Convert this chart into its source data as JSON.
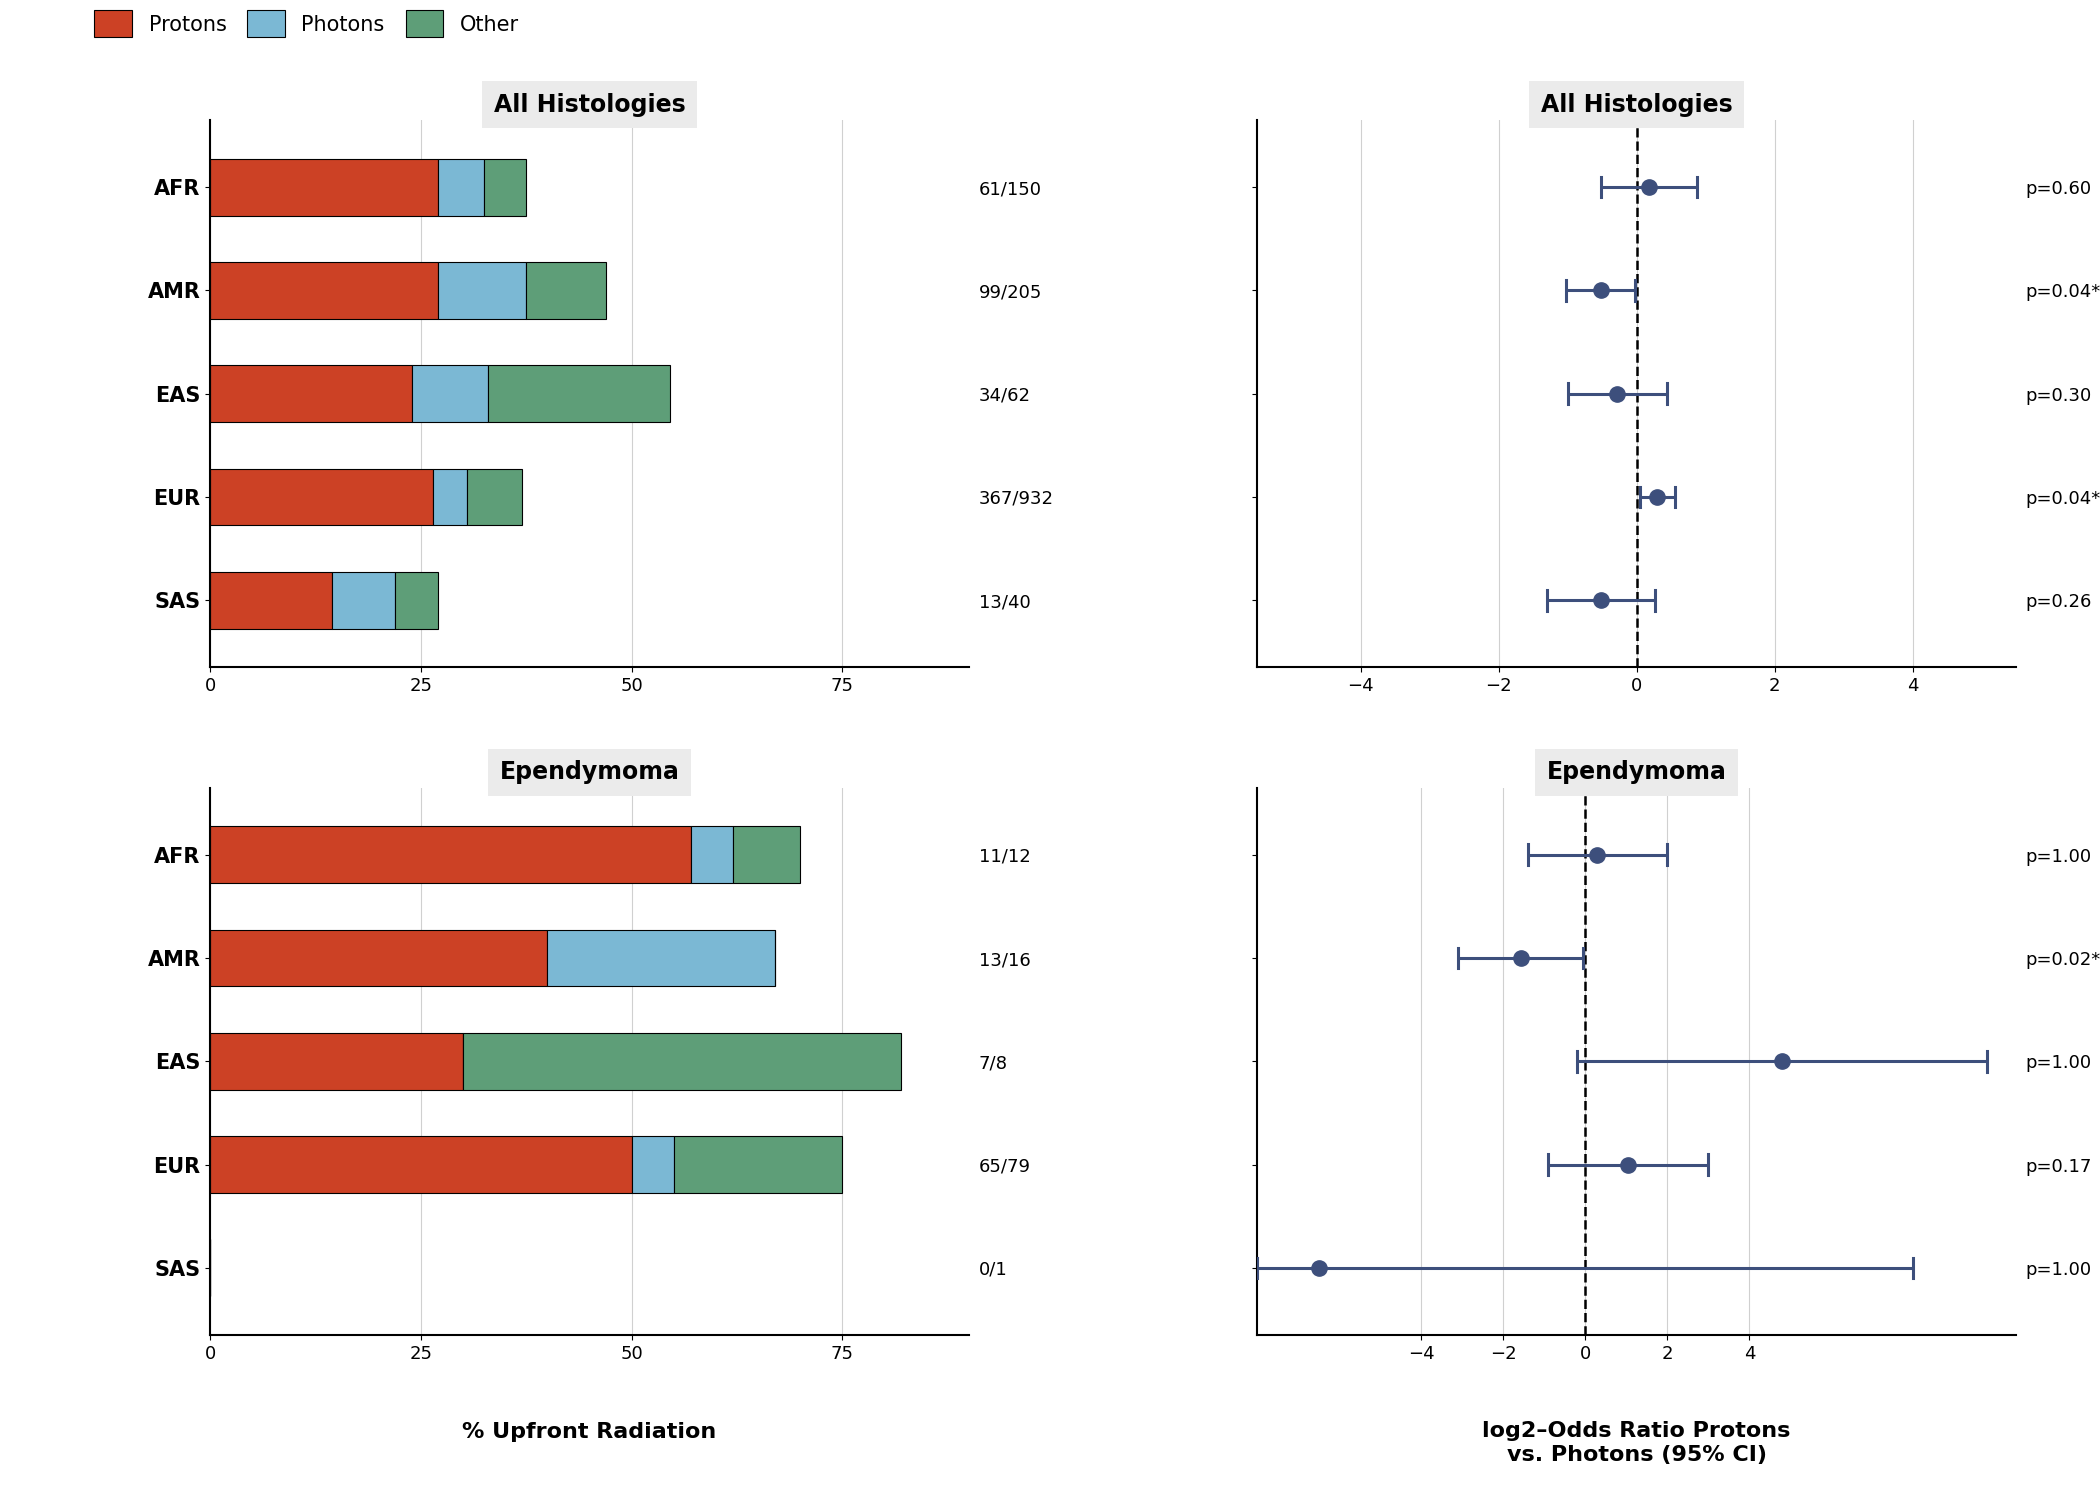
{
  "categories": [
    "AFR",
    "AMR",
    "EAS",
    "EUR",
    "SAS"
  ],
  "bar_colors": {
    "Protons": "#CC4125",
    "Photons": "#7BB8D4",
    "Other": "#5E9E78"
  },
  "all_hist_bars": {
    "Protons": [
      27.0,
      27.0,
      24.0,
      26.5,
      14.5
    ],
    "Photons": [
      5.5,
      10.5,
      9.0,
      4.0,
      7.5
    ],
    "Other": [
      5.0,
      9.5,
      21.5,
      6.5,
      5.0
    ]
  },
  "all_hist_labels": [
    "61/150",
    "99/205",
    "34/62",
    "367/932",
    "13/40"
  ],
  "epen_bars": {
    "Protons": [
      57.0,
      40.0,
      30.0,
      50.0,
      0.0
    ],
    "Photons": [
      5.0,
      27.0,
      0.0,
      5.0,
      0.0
    ],
    "Other": [
      8.0,
      0.0,
      52.0,
      20.0,
      0.0
    ]
  },
  "epen_labels": [
    "11/12",
    "13/16",
    "7/8",
    "65/79",
    "0/1"
  ],
  "all_hist_forest": {
    "est": [
      0.18,
      -0.52,
      -0.28,
      0.3,
      -0.52
    ],
    "lo": [
      -0.52,
      -1.02,
      -1.0,
      0.05,
      -1.3
    ],
    "hi": [
      0.88,
      -0.02,
      0.44,
      0.55,
      0.26
    ],
    "pval": [
      "p=0.60",
      "p=0.04*",
      "p=0.30",
      "p=0.04*",
      "p=0.26"
    ]
  },
  "epen_forest": {
    "est": [
      0.28,
      -1.58,
      4.8,
      1.05,
      -6.5
    ],
    "lo": [
      -1.4,
      -3.1,
      -0.2,
      -0.9,
      -8.0
    ],
    "hi": [
      2.0,
      -0.06,
      9.8,
      3.0,
      8.0
    ],
    "pval": [
      "p=1.00",
      "p=0.02*",
      "p=1.00",
      "p=0.17",
      "p=1.00"
    ]
  },
  "all_forest_xlim": [
    -5.5,
    5.5
  ],
  "epen_forest_xlim": [
    -8.0,
    10.5
  ],
  "all_forest_xticks": [
    -4,
    -2,
    0,
    2,
    4
  ],
  "epen_forest_xticks": [
    -4,
    -2,
    0,
    2,
    4
  ],
  "bar_xlim": [
    0,
    90
  ],
  "bar_xticks": [
    0,
    25,
    50,
    75
  ],
  "panel_bg": "#EBEBEB",
  "plot_bg": "#FFFFFF",
  "grid_color": "#D0D0D0",
  "point_color": "#3D4F7C",
  "title_fontsize": 17,
  "label_fontsize": 15,
  "tick_fontsize": 13,
  "annot_fontsize": 13,
  "bar_height": 0.55
}
